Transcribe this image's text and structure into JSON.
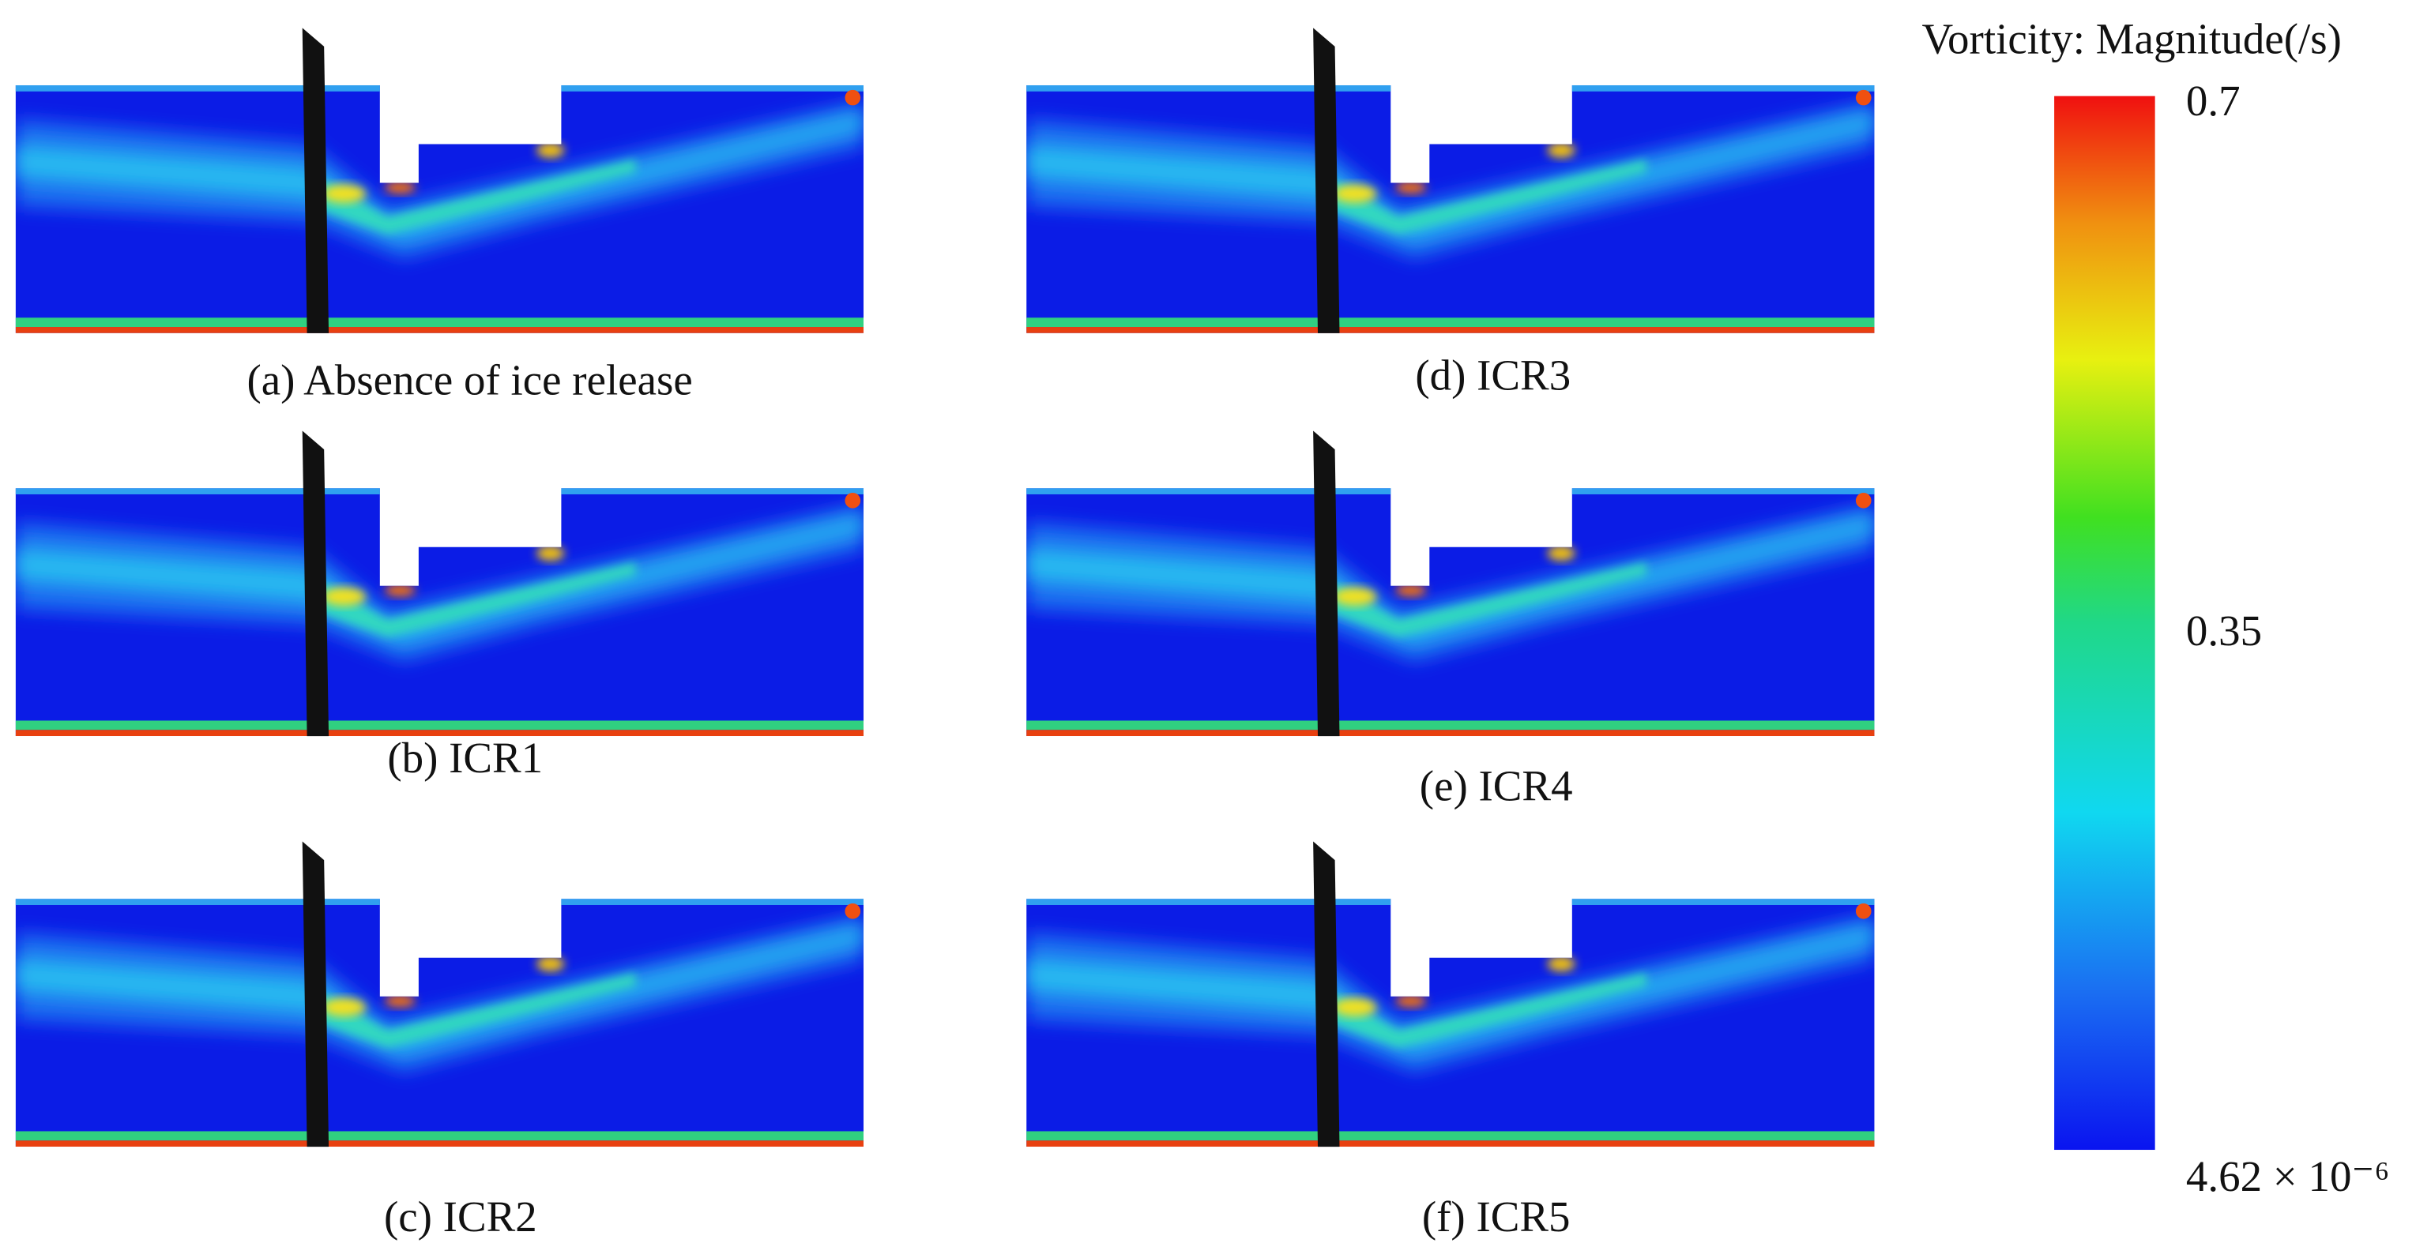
{
  "panels": [
    {
      "label": "(a) Absence of ice release"
    },
    {
      "label": "(b) ICR1"
    },
    {
      "label": "(c)  ICR2"
    },
    {
      "label": "(d) ICR3"
    },
    {
      "label": "(e) ICR4"
    },
    {
      "label": "(f) ICR5"
    }
  ],
  "colorbar": {
    "title": "Vorticity: Magnitude(/s)",
    "max_label": "0.7",
    "mid_label": "0.35",
    "min_label": "4.62 × 10⁻⁶"
  }
}
